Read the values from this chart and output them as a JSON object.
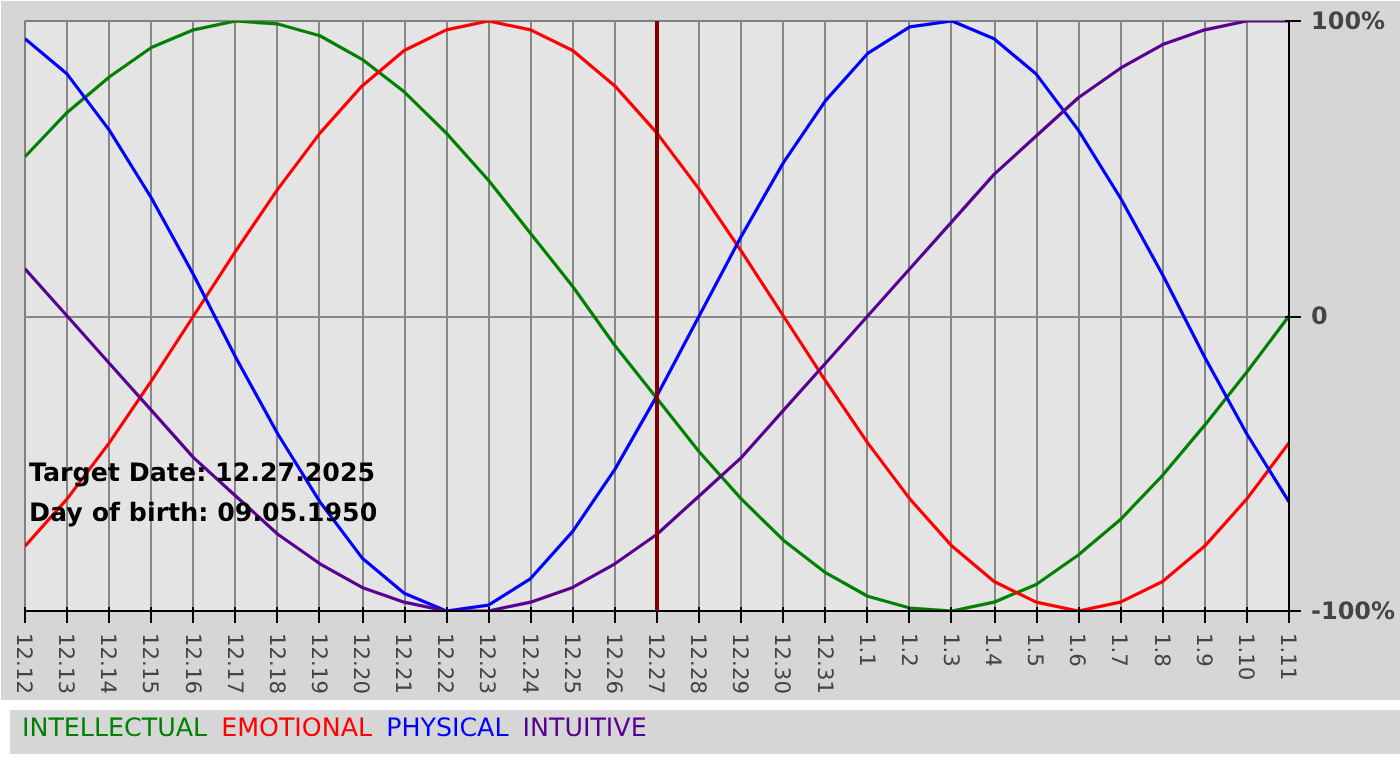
{
  "chart_data": {
    "type": "line",
    "categories": [
      "12.12",
      "12.13",
      "12.14",
      "12.15",
      "12.16",
      "12.17",
      "12.18",
      "12.19",
      "12.20",
      "12.21",
      "12.22",
      "12.23",
      "12.24",
      "12.25",
      "12.26",
      "12.27",
      "12.28",
      "12.29",
      "12.30",
      "12.31",
      "1.1",
      "1.2",
      "1.3",
      "1.4",
      "1.5",
      "1.6",
      "1.7",
      "1.8",
      "1.9",
      "1.10",
      "1.11"
    ],
    "series": [
      {
        "name": "INTELLECTUAL",
        "color": "#008000",
        "values": [
          54,
          69,
          81,
          91,
          97,
          100,
          99,
          95,
          87,
          76,
          62,
          46,
          28,
          10,
          -10,
          -28,
          -46,
          -62,
          -76,
          -87,
          -95,
          -99,
          -100,
          -97,
          -91,
          -81,
          -69,
          -54,
          -37,
          -19,
          0
        ]
      },
      {
        "name": "EMOTIONAL",
        "color": "#ff0000",
        "values": [
          -78,
          -62,
          -43,
          -22,
          0,
          22,
          43,
          62,
          78,
          90,
          97,
          100,
          97,
          90,
          78,
          62,
          43,
          22,
          0,
          -22,
          -43,
          -62,
          -78,
          -90,
          -97,
          -100,
          -97,
          -90,
          -78,
          -62,
          -43
        ]
      },
      {
        "name": "PHYSICAL",
        "color": "#0000ff",
        "values": [
          94,
          82,
          63,
          40,
          14,
          -14,
          -40,
          -63,
          -82,
          -94,
          -100,
          -98,
          -89,
          -73,
          -52,
          -27,
          0,
          27,
          52,
          73,
          89,
          98,
          100,
          94,
          82,
          63,
          40,
          14,
          -14,
          -40,
          -63
        ]
      },
      {
        "name": "INTUITIVE",
        "color": "#5a0090",
        "values": [
          16,
          0,
          -16,
          -32,
          -48,
          -61,
          -74,
          -84,
          -92,
          -97,
          -100,
          -100,
          -97,
          -92,
          -84,
          -74,
          -61,
          -48,
          -32,
          -16,
          0,
          16,
          32,
          48,
          61,
          74,
          84,
          92,
          97,
          100,
          100
        ]
      }
    ],
    "ylim": [
      -100,
      100
    ],
    "yticks": [
      {
        "value": 100,
        "label": "100%"
      },
      0,
      {
        "value": -100,
        "label": "-100%"
      }
    ],
    "ref_lines": [
      {
        "axis": "x",
        "value": "12.27",
        "label": null,
        "color": "#800000"
      }
    ],
    "annotations": [
      "Target Date: 12.27.2025",
      "Day of birth: 09.05.1950"
    ],
    "grid": true,
    "legend": "bottom",
    "line_style": "solid",
    "marker": "none"
  }
}
